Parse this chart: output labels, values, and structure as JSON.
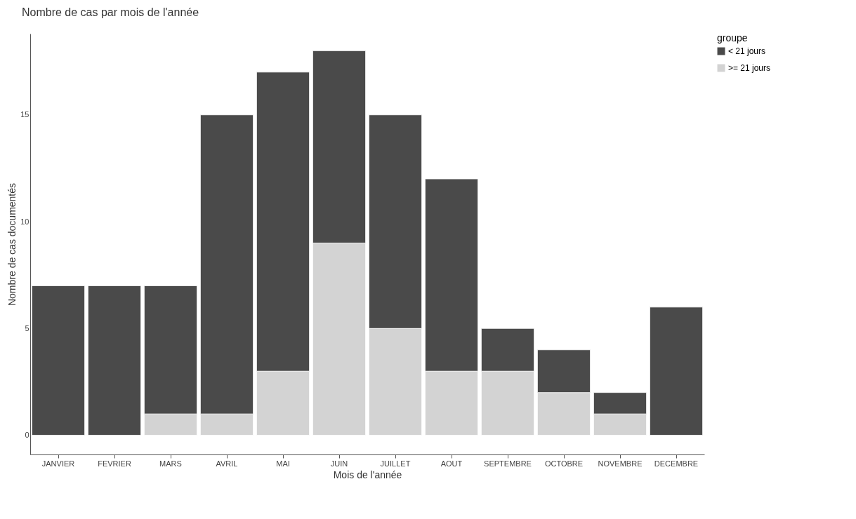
{
  "chart_data": {
    "type": "bar",
    "title": "Nombre de cas par mois de l'année",
    "xlabel": "Mois de l'année",
    "ylabel": "Nombre de cas documentés",
    "legend_title": "groupe",
    "categories": [
      "JANVIER",
      "FEVRIER",
      "MARS",
      "AVRIL",
      "MAI",
      "JUIN",
      "JUILLET",
      "AOUT",
      "SEPTEMBRE",
      "OCTOBRE",
      "NOVEMBRE",
      "DECEMBRE"
    ],
    "stacked": true,
    "series": [
      {
        "name": ">= 21 jours",
        "color": "#d3d3d3",
        "values": [
          0,
          0,
          1,
          1,
          3,
          9,
          5,
          3,
          3,
          2,
          1,
          0
        ]
      },
      {
        "name": "< 21 jours",
        "color": "#4a4a4a",
        "values": [
          7,
          7,
          6,
          14,
          14,
          9,
          10,
          9,
          2,
          2,
          1,
          6
        ]
      }
    ],
    "ylim": [
      -0.9,
      18.8
    ],
    "yticks": [
      0,
      5,
      10,
      15
    ],
    "grid": false,
    "legend": "top right"
  }
}
